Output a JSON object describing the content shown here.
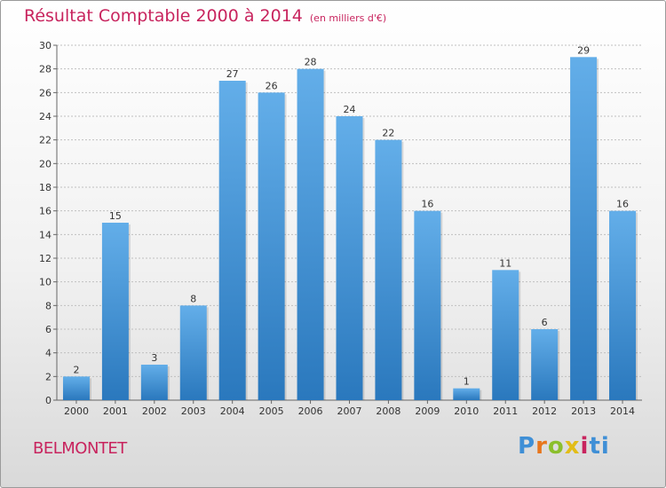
{
  "title": "Résultat Comptable 2000 à 2014",
  "unit_label": "(en milliers d'€)",
  "city": "BELMONTET",
  "logo_text": "Proxiti",
  "colors": {
    "bar_light": "#63aee9",
    "bar_dark": "#2a78bd",
    "title": "#c8245e",
    "grid": "#c0c0c0"
  },
  "chart_data": {
    "type": "bar",
    "title": "Résultat Comptable 2000 à 2014",
    "subtitle": "(en milliers d'€)",
    "xlabel": "",
    "ylabel": "",
    "categories": [
      "2000",
      "2001",
      "2002",
      "2003",
      "2004",
      "2005",
      "2006",
      "2007",
      "2008",
      "2009",
      "2010",
      "2011",
      "2012",
      "2013",
      "2014"
    ],
    "values": [
      2,
      15,
      3,
      8,
      27,
      26,
      28,
      24,
      22,
      16,
      1,
      11,
      6,
      29,
      16
    ],
    "ylim": [
      0,
      30
    ],
    "yticks": [
      0,
      2,
      4,
      6,
      8,
      10,
      12,
      14,
      16,
      18,
      20,
      22,
      24,
      26,
      28,
      30
    ],
    "grid": true,
    "data_labels": true
  }
}
